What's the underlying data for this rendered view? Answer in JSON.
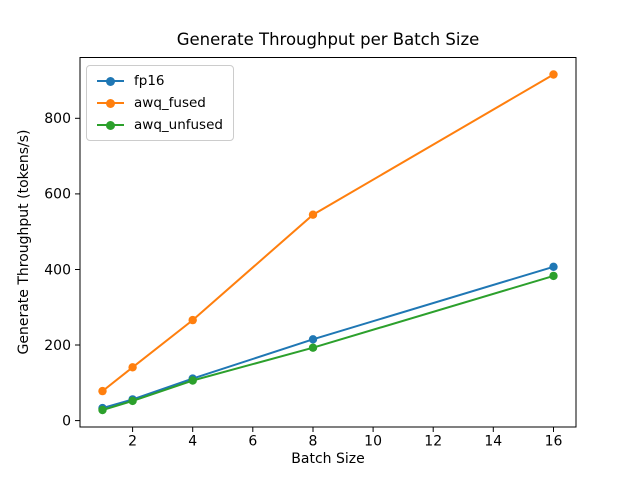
{
  "chart_data": {
    "type": "line",
    "title": "Generate Throughput per Batch Size",
    "xlabel": "Batch Size",
    "ylabel": "Generate Throughput (tokens/s)",
    "x": [
      1,
      2,
      4,
      8,
      16
    ],
    "series": [
      {
        "name": "fp16",
        "color": "#1f77b4",
        "values": [
          33,
          56,
          111,
          215,
          407
        ]
      },
      {
        "name": "awq_fused",
        "color": "#ff7f0e",
        "values": [
          78,
          141,
          266,
          545,
          916
        ]
      },
      {
        "name": "awq_unfused",
        "color": "#2ca02c",
        "values": [
          28,
          52,
          106,
          193,
          383
        ]
      }
    ],
    "x_ticks": [
      2,
      4,
      6,
      8,
      10,
      12,
      14,
      16
    ],
    "y_ticks": [
      0,
      200,
      400,
      600,
      800
    ],
    "xlim": [
      0.25,
      16.75
    ],
    "ylim": [
      -17,
      961
    ],
    "grid": false,
    "legend_position": "upper left",
    "marker": "o",
    "frame_color": "#000000",
    "text_color": "#000000"
  }
}
